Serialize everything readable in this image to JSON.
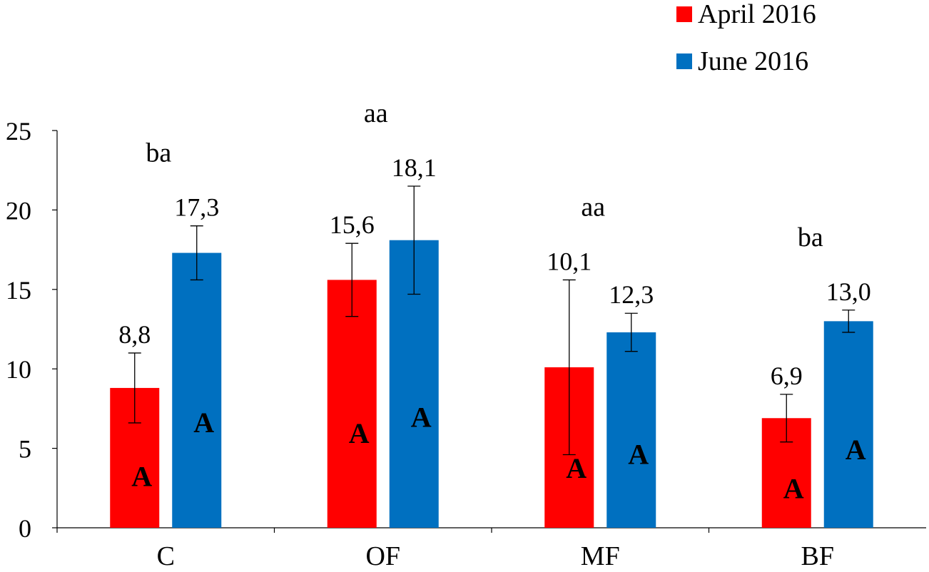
{
  "chart_data": {
    "type": "bar",
    "categories": [
      "C",
      "OF",
      "MF",
      "BF"
    ],
    "series": [
      {
        "name": "April 2016",
        "color": "#ff0000",
        "values": [
          8.8,
          15.6,
          10.1,
          6.9
        ],
        "data_labels": [
          "8,8",
          "15,6",
          "10,1",
          "6,9"
        ],
        "error": [
          2.2,
          2.3,
          5.5,
          1.5
        ],
        "letters": [
          "A",
          "A",
          "A",
          "A"
        ]
      },
      {
        "name": "June 2016",
        "color": "#0070c0",
        "values": [
          17.3,
          18.1,
          12.3,
          13.0
        ],
        "data_labels": [
          "17,3",
          "18,1",
          "12,3",
          "13,0"
        ],
        "error": [
          1.7,
          3.4,
          1.2,
          0.7
        ],
        "letters": [
          "A",
          "A",
          "A",
          "A"
        ]
      }
    ],
    "group_annotations": [
      "ba",
      "aa",
      "aa",
      "ba"
    ],
    "ylim": [
      0,
      25
    ],
    "yticks": [
      "0",
      "5",
      "10",
      "15",
      "20",
      "25"
    ],
    "xlabel": "",
    "ylabel": "",
    "grid": false,
    "legend_position": "top-right"
  }
}
